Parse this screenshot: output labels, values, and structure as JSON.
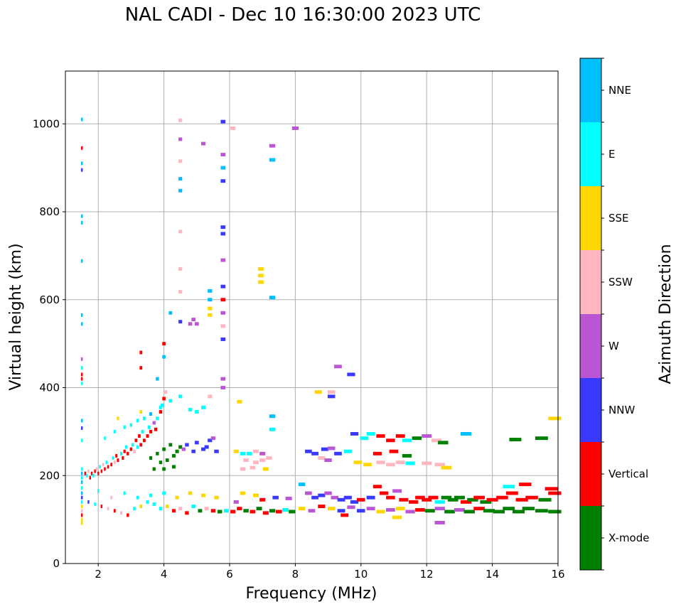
{
  "chart_data": {
    "type": "scatter",
    "title": "NAL CADI - Dec 10 16:30:00 2023 UTC",
    "xlabel": "Frequency (MHz)",
    "ylabel": "Virtual height (km)",
    "xlim": [
      1,
      16
    ],
    "ylim": [
      0,
      1120
    ],
    "xticks": [
      2,
      4,
      6,
      8,
      10,
      12,
      14,
      16
    ],
    "yticks": [
      0,
      200,
      400,
      600,
      800,
      1000
    ],
    "grid": true,
    "colorbar": {
      "label": "Azimuth Direction",
      "position": "right",
      "categories": [
        "X-mode",
        "Vertical",
        "NNW",
        "W",
        "SSW",
        "SSE",
        "E",
        "NNE"
      ],
      "colors": [
        "#008000",
        "#ff0000",
        "#3a3aff",
        "#ba55d3",
        "#ffb6c1",
        "#ffd700",
        "#00ffff",
        "#00bfff"
      ]
    },
    "points_format": [
      "frequency_mhz",
      "height_km",
      "category_index"
    ],
    "points": [
      [
        1.5,
        1010,
        7
      ],
      [
        1.5,
        945,
        1
      ],
      [
        1.5,
        910,
        7
      ],
      [
        1.5,
        895,
        2
      ],
      [
        1.5,
        790,
        7
      ],
      [
        1.5,
        775,
        7
      ],
      [
        1.5,
        688,
        7
      ],
      [
        1.5,
        565,
        7
      ],
      [
        1.5,
        545,
        7
      ],
      [
        1.5,
        465,
        3
      ],
      [
        1.5,
        445,
        6
      ],
      [
        1.5,
        430,
        1
      ],
      [
        1.5,
        420,
        1
      ],
      [
        1.5,
        410,
        6
      ],
      [
        1.5,
        325,
        7
      ],
      [
        1.5,
        308,
        2
      ],
      [
        1.5,
        280,
        6
      ],
      [
        1.5,
        215,
        6
      ],
      [
        1.5,
        205,
        7
      ],
      [
        1.5,
        195,
        6
      ],
      [
        1.5,
        185,
        7
      ],
      [
        1.5,
        172,
        6
      ],
      [
        1.5,
        160,
        7
      ],
      [
        1.5,
        150,
        2
      ],
      [
        1.5,
        140,
        6
      ],
      [
        1.5,
        130,
        5
      ],
      [
        1.5,
        120,
        4
      ],
      [
        1.5,
        110,
        1
      ],
      [
        1.5,
        100,
        5
      ],
      [
        1.5,
        92,
        5
      ],
      [
        1.6,
        205,
        1
      ],
      [
        1.65,
        200,
        6
      ],
      [
        1.7,
        210,
        4
      ],
      [
        1.75,
        195,
        1
      ],
      [
        1.8,
        205,
        1
      ],
      [
        1.85,
        200,
        6
      ],
      [
        1.9,
        210,
        1
      ],
      [
        1.95,
        215,
        4
      ],
      [
        2.0,
        205,
        1
      ],
      [
        2.05,
        220,
        6
      ],
      [
        2.1,
        210,
        1
      ],
      [
        2.15,
        225,
        4
      ],
      [
        2.2,
        215,
        1
      ],
      [
        2.25,
        230,
        6
      ],
      [
        2.3,
        220,
        1
      ],
      [
        2.4,
        225,
        1
      ],
      [
        2.45,
        240,
        6
      ],
      [
        2.5,
        230,
        4
      ],
      [
        2.55,
        245,
        1
      ],
      [
        2.6,
        235,
        1
      ],
      [
        2.7,
        250,
        6
      ],
      [
        2.75,
        240,
        1
      ],
      [
        2.8,
        255,
        1
      ],
      [
        2.85,
        265,
        6
      ],
      [
        2.9,
        250,
        1
      ],
      [
        3.0,
        260,
        1
      ],
      [
        3.05,
        270,
        6
      ],
      [
        3.1,
        255,
        4
      ],
      [
        3.15,
        280,
        1
      ],
      [
        3.2,
        265,
        6
      ],
      [
        3.25,
        290,
        1
      ],
      [
        3.3,
        270,
        1
      ],
      [
        3.35,
        300,
        6
      ],
      [
        3.4,
        280,
        1
      ],
      [
        3.5,
        290,
        1
      ],
      [
        3.55,
        310,
        6
      ],
      [
        3.6,
        300,
        1
      ],
      [
        3.7,
        320,
        3
      ],
      [
        3.75,
        305,
        1
      ],
      [
        3.8,
        330,
        6
      ],
      [
        3.9,
        345,
        1
      ],
      [
        3.95,
        360,
        6
      ],
      [
        4.0,
        375,
        1
      ],
      [
        4.05,
        390,
        4
      ],
      [
        2.2,
        285,
        6
      ],
      [
        2.5,
        300,
        6
      ],
      [
        2.8,
        310,
        6
      ],
      [
        3.0,
        315,
        6
      ],
      [
        3.2,
        325,
        6
      ],
      [
        3.4,
        330,
        6
      ],
      [
        3.6,
        340,
        7
      ],
      [
        3.9,
        355,
        6
      ],
      [
        4.2,
        370,
        6
      ],
      [
        4.5,
        380,
        6
      ],
      [
        4.8,
        350,
        6
      ],
      [
        5.0,
        345,
        6
      ],
      [
        5.2,
        355,
        6
      ],
      [
        5.4,
        380,
        4
      ],
      [
        3.3,
        345,
        5
      ],
      [
        2.6,
        330,
        5
      ],
      [
        3.6,
        240,
        0
      ],
      [
        3.8,
        250,
        0
      ],
      [
        3.9,
        230,
        0
      ],
      [
        4.0,
        260,
        0
      ],
      [
        4.1,
        235,
        0
      ],
      [
        4.2,
        270,
        0
      ],
      [
        4.3,
        245,
        0
      ],
      [
        4.4,
        255,
        0
      ],
      [
        4.5,
        265,
        0
      ],
      [
        3.7,
        215,
        0
      ],
      [
        4.0,
        215,
        0
      ],
      [
        4.3,
        220,
        0
      ],
      [
        4.7,
        270,
        2
      ],
      [
        4.9,
        255,
        2
      ],
      [
        5.0,
        275,
        2
      ],
      [
        5.2,
        260,
        2
      ],
      [
        5.4,
        280,
        2
      ],
      [
        5.6,
        255,
        2
      ],
      [
        5.3,
        265,
        2
      ],
      [
        4.6,
        260,
        3
      ],
      [
        5.5,
        285,
        3
      ],
      [
        4.5,
        550,
        2
      ],
      [
        4.8,
        545,
        3
      ],
      [
        4.9,
        555,
        3
      ],
      [
        5.0,
        545,
        3
      ],
      [
        5.4,
        620,
        7
      ],
      [
        5.4,
        600,
        7
      ],
      [
        5.4,
        580,
        5
      ],
      [
        5.4,
        565,
        5
      ],
      [
        5.8,
        1005,
        2
      ],
      [
        5.8,
        930,
        3
      ],
      [
        5.8,
        900,
        7
      ],
      [
        5.8,
        870,
        2
      ],
      [
        5.8,
        765,
        2
      ],
      [
        5.8,
        750,
        2
      ],
      [
        5.8,
        690,
        3
      ],
      [
        5.8,
        630,
        2
      ],
      [
        5.8,
        600,
        1
      ],
      [
        5.8,
        570,
        3
      ],
      [
        5.8,
        540,
        4
      ],
      [
        5.8,
        510,
        2
      ],
      [
        5.8,
        420,
        3
      ],
      [
        5.8,
        400,
        3
      ],
      [
        4.5,
        1008,
        4
      ],
      [
        4.5,
        965,
        3
      ],
      [
        4.5,
        915,
        4
      ],
      [
        4.5,
        875,
        7
      ],
      [
        4.5,
        848,
        7
      ],
      [
        4.5,
        755,
        4
      ],
      [
        4.5,
        670,
        4
      ],
      [
        4.5,
        618,
        4
      ],
      [
        4.2,
        570,
        7
      ],
      [
        4.0,
        500,
        1
      ],
      [
        4.0,
        470,
        7
      ],
      [
        3.3,
        480,
        1
      ],
      [
        3.3,
        445,
        1
      ],
      [
        3.8,
        420,
        7
      ],
      [
        5.2,
        955,
        3
      ],
      [
        6.1,
        990,
        4
      ],
      [
        7.3,
        950,
        3
      ],
      [
        7.3,
        918,
        7
      ],
      [
        7.3,
        605,
        7
      ],
      [
        8.0,
        990,
        3
      ],
      [
        9.3,
        448,
        3
      ],
      [
        9.7,
        430,
        2
      ],
      [
        6.95,
        670,
        5
      ],
      [
        6.95,
        655,
        5
      ],
      [
        6.95,
        640,
        5
      ],
      [
        6.3,
        368,
        5
      ],
      [
        7.3,
        335,
        7
      ],
      [
        7.3,
        305,
        6
      ],
      [
        8.7,
        390,
        5
      ],
      [
        9.1,
        390,
        4
      ],
      [
        9.1,
        380,
        2
      ],
      [
        6.4,
        250,
        6
      ],
      [
        6.6,
        250,
        6
      ],
      [
        6.8,
        255,
        4
      ],
      [
        7.0,
        250,
        3
      ],
      [
        6.5,
        235,
        4
      ],
      [
        6.8,
        230,
        4
      ],
      [
        7.0,
        235,
        4
      ],
      [
        6.4,
        215,
        4
      ],
      [
        6.7,
        218,
        4
      ],
      [
        7.1,
        215,
        5
      ],
      [
        6.2,
        255,
        5
      ],
      [
        7.2,
        240,
        4
      ],
      [
        8.4,
        255,
        2
      ],
      [
        8.6,
        250,
        2
      ],
      [
        8.9,
        260,
        2
      ],
      [
        9.1,
        262,
        3
      ],
      [
        8.8,
        240,
        4
      ],
      [
        9.0,
        235,
        3
      ],
      [
        9.3,
        250,
        2
      ],
      [
        9.6,
        255,
        6
      ],
      [
        9.8,
        295,
        2
      ],
      [
        10.1,
        285,
        6
      ],
      [
        10.3,
        295,
        6
      ],
      [
        10.6,
        290,
        1
      ],
      [
        10.9,
        280,
        1
      ],
      [
        11.2,
        290,
        1
      ],
      [
        11.4,
        280,
        6
      ],
      [
        11.7,
        285,
        0
      ],
      [
        12.0,
        290,
        3
      ],
      [
        12.3,
        280,
        4
      ],
      [
        12.5,
        275,
        0
      ],
      [
        13.2,
        295,
        7
      ],
      [
        14.7,
        282,
        0
      ],
      [
        15.5,
        285,
        0
      ],
      [
        15.9,
        330,
        5
      ],
      [
        9.9,
        230,
        5
      ],
      [
        10.2,
        225,
        5
      ],
      [
        10.6,
        230,
        4
      ],
      [
        10.9,
        225,
        4
      ],
      [
        11.2,
        230,
        4
      ],
      [
        11.5,
        228,
        6
      ],
      [
        12.0,
        228,
        4
      ],
      [
        12.4,
        225,
        4
      ],
      [
        12.6,
        218,
        5
      ],
      [
        10.5,
        250,
        1
      ],
      [
        11.0,
        255,
        1
      ],
      [
        11.4,
        245,
        0
      ],
      [
        8.2,
        180,
        7
      ],
      [
        8.4,
        160,
        3
      ],
      [
        8.6,
        150,
        2
      ],
      [
        8.8,
        155,
        2
      ],
      [
        9.0,
        160,
        3
      ],
      [
        9.2,
        150,
        3
      ],
      [
        9.4,
        145,
        2
      ],
      [
        9.6,
        150,
        2
      ],
      [
        9.8,
        140,
        2
      ],
      [
        10.0,
        145,
        1
      ],
      [
        10.3,
        150,
        2
      ],
      [
        10.5,
        175,
        1
      ],
      [
        10.7,
        160,
        1
      ],
      [
        10.9,
        150,
        1
      ],
      [
        11.1,
        165,
        3
      ],
      [
        11.3,
        145,
        1
      ],
      [
        11.6,
        140,
        1
      ],
      [
        11.8,
        150,
        1
      ],
      [
        12.0,
        145,
        1
      ],
      [
        12.2,
        150,
        1
      ],
      [
        12.4,
        140,
        6
      ],
      [
        12.6,
        150,
        0
      ],
      [
        12.8,
        145,
        0
      ],
      [
        13.0,
        150,
        0
      ],
      [
        13.2,
        140,
        1
      ],
      [
        13.4,
        145,
        0
      ],
      [
        13.6,
        150,
        1
      ],
      [
        13.8,
        140,
        0
      ],
      [
        14.0,
        145,
        1
      ],
      [
        14.3,
        150,
        1
      ],
      [
        14.6,
        160,
        1
      ],
      [
        14.9,
        145,
        1
      ],
      [
        15.2,
        150,
        1
      ],
      [
        15.6,
        145,
        0
      ],
      [
        15.9,
        160,
        1
      ],
      [
        14.5,
        175,
        6
      ],
      [
        15.0,
        180,
        1
      ],
      [
        15.8,
        170,
        1
      ],
      [
        8.2,
        125,
        5
      ],
      [
        8.5,
        120,
        3
      ],
      [
        8.8,
        130,
        1
      ],
      [
        9.1,
        125,
        5
      ],
      [
        9.4,
        120,
        2
      ],
      [
        9.7,
        128,
        3
      ],
      [
        10.0,
        120,
        2
      ],
      [
        10.3,
        125,
        3
      ],
      [
        10.6,
        118,
        5
      ],
      [
        10.9,
        122,
        3
      ],
      [
        11.2,
        125,
        5
      ],
      [
        11.5,
        118,
        3
      ],
      [
        11.8,
        122,
        1
      ],
      [
        12.1,
        120,
        0
      ],
      [
        12.4,
        125,
        3
      ],
      [
        12.7,
        118,
        0
      ],
      [
        13.0,
        122,
        3
      ],
      [
        13.3,
        118,
        0
      ],
      [
        13.6,
        125,
        1
      ],
      [
        13.9,
        120,
        0
      ],
      [
        14.2,
        118,
        0
      ],
      [
        14.5,
        125,
        0
      ],
      [
        14.8,
        118,
        0
      ],
      [
        15.1,
        125,
        0
      ],
      [
        15.5,
        120,
        0
      ],
      [
        15.9,
        118,
        0
      ],
      [
        12.4,
        93,
        3
      ],
      [
        11.1,
        105,
        5
      ],
      [
        9.5,
        110,
        1
      ],
      [
        1.7,
        140,
        2
      ],
      [
        1.9,
        135,
        6
      ],
      [
        2.1,
        130,
        1
      ],
      [
        2.3,
        125,
        4
      ],
      [
        2.5,
        120,
        1
      ],
      [
        2.7,
        115,
        4
      ],
      [
        2.9,
        110,
        1
      ],
      [
        3.1,
        125,
        6
      ],
      [
        3.3,
        130,
        5
      ],
      [
        3.5,
        140,
        6
      ],
      [
        3.7,
        135,
        6
      ],
      [
        3.9,
        125,
        6
      ],
      [
        4.1,
        130,
        5
      ],
      [
        4.3,
        120,
        1
      ],
      [
        4.5,
        125,
        4
      ],
      [
        4.7,
        115,
        1
      ],
      [
        4.9,
        130,
        6
      ],
      [
        5.1,
        120,
        0
      ],
      [
        5.3,
        125,
        4
      ],
      [
        5.5,
        120,
        1
      ],
      [
        5.7,
        118,
        0
      ],
      [
        5.9,
        120,
        6
      ],
      [
        6.1,
        118,
        1
      ],
      [
        6.3,
        125,
        1
      ],
      [
        6.5,
        120,
        0
      ],
      [
        6.7,
        118,
        1
      ],
      [
        6.9,
        125,
        0
      ],
      [
        7.1,
        115,
        1
      ],
      [
        7.3,
        120,
        0
      ],
      [
        7.5,
        118,
        1
      ],
      [
        7.7,
        122,
        6
      ],
      [
        7.9,
        118,
        0
      ],
      [
        2.0,
        165,
        6
      ],
      [
        2.4,
        150,
        4
      ],
      [
        2.8,
        160,
        6
      ],
      [
        3.2,
        150,
        6
      ],
      [
        3.6,
        155,
        6
      ],
      [
        4.0,
        160,
        6
      ],
      [
        4.4,
        150,
        5
      ],
      [
        4.8,
        160,
        5
      ],
      [
        5.2,
        155,
        5
      ],
      [
        5.6,
        150,
        5
      ],
      [
        6.4,
        160,
        5
      ],
      [
        6.8,
        155,
        5
      ],
      [
        7.0,
        145,
        1
      ],
      [
        7.4,
        150,
        2
      ],
      [
        7.8,
        148,
        3
      ],
      [
        6.2,
        140,
        3
      ]
    ]
  }
}
